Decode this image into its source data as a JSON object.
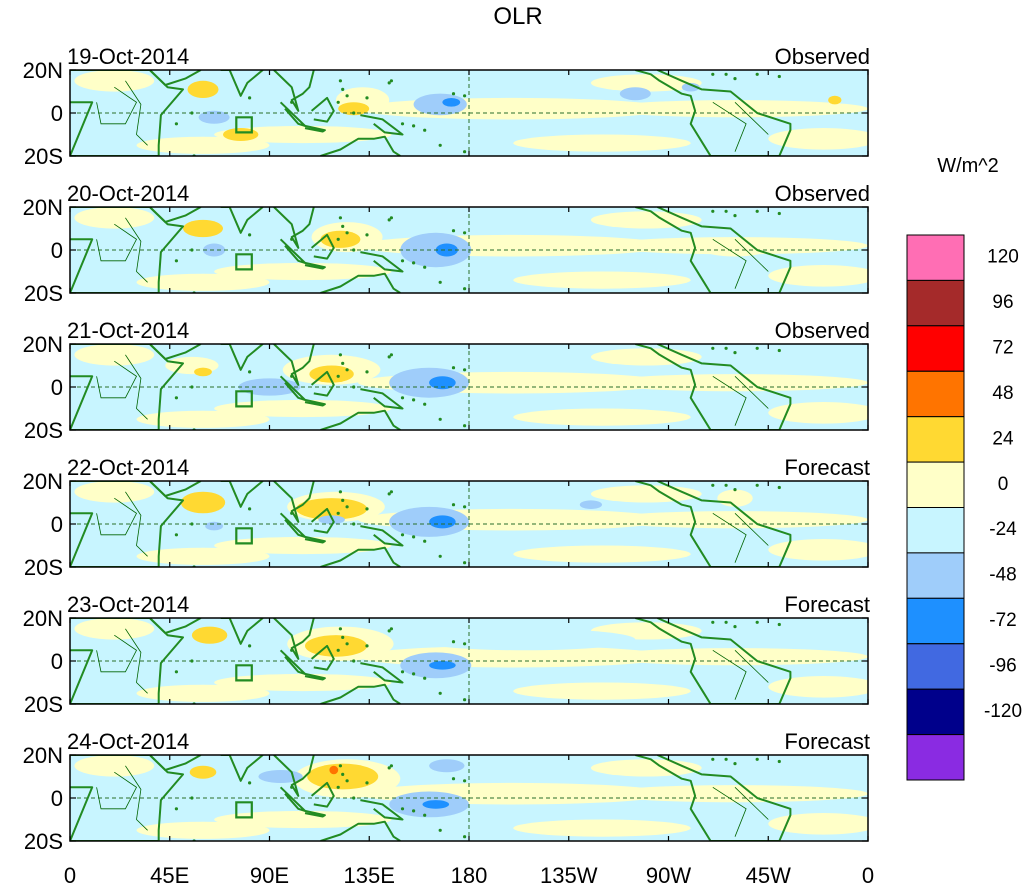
{
  "title": "OLR",
  "units": "W/m^2",
  "y_ticks": [
    "20N",
    "0",
    "20S"
  ],
  "x_ticks": [
    "0",
    "45E",
    "90E",
    "135E",
    "180",
    "135W",
    "90W",
    "45W",
    "0"
  ],
  "panels": [
    {
      "date": "19-Oct-2014",
      "kind": "Observed"
    },
    {
      "date": "20-Oct-2014",
      "kind": "Observed"
    },
    {
      "date": "21-Oct-2014",
      "kind": "Observed"
    },
    {
      "date": "22-Oct-2014",
      "kind": "Forecast"
    },
    {
      "date": "23-Oct-2014",
      "kind": "Forecast"
    },
    {
      "date": "24-Oct-2014",
      "kind": "Forecast"
    }
  ],
  "colorbar": {
    "colors": [
      "#ff6eb4",
      "#a52a2a",
      "#ff0000",
      "#ff7400",
      "#ffd932",
      "#ffffc8",
      "#c8f5ff",
      "#9fcdfa",
      "#1e90ff",
      "#4169e1",
      "#00008b",
      "#8a2be2"
    ],
    "labels": [
      "120",
      "96",
      "72",
      "48",
      "24",
      "0",
      "-24",
      "-48",
      "-72",
      "-96",
      "-120"
    ]
  },
  "colors": {
    "ocean_bg": "#c8f5ff",
    "coast": "#228b22",
    "border": "#006400"
  }
}
